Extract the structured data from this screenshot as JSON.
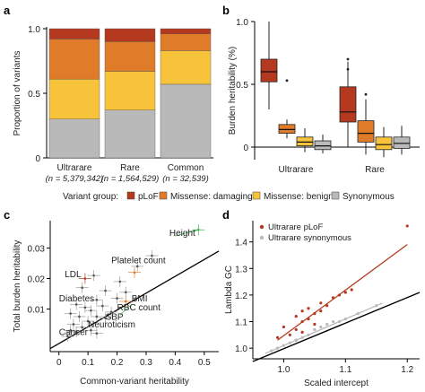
{
  "panel_labels": [
    "a",
    "b",
    "c",
    "d"
  ],
  "colors": {
    "plof": "#b5391f",
    "missense_damaging": "#e07b2a",
    "missense_benign": "#f6c33b",
    "synonymous": "#b9b9b9",
    "regression_line": "#000000",
    "d_plof_line": "#b5391f",
    "d_syn_line": "#b9b9b9",
    "green_line": "#3bb44a"
  },
  "legend": {
    "title": "Variant group:",
    "items": [
      {
        "key": "plof",
        "label": "pLoF"
      },
      {
        "key": "missense_damaging",
        "label": "Missense: damaging"
      },
      {
        "key": "missense_benign",
        "label": "Missense: benign"
      },
      {
        "key": "synonymous",
        "label": "Synonymous"
      }
    ]
  },
  "chart_data": [
    {
      "panel": "a",
      "type": "bar",
      "stacked": true,
      "ylabel": "Proportion of variants",
      "ylim": [
        0,
        1.0
      ],
      "yticks": [
        "0",
        "0.5",
        "1.0"
      ],
      "categories": [
        "Ultrarare",
        "Rare",
        "Common"
      ],
      "category_sublabels": [
        "(n = 5,379,342)",
        "(n = 1,564,529)",
        "(n = 32,539)"
      ],
      "series": [
        {
          "name": "Synonymous",
          "key": "synonymous",
          "values": [
            0.3,
            0.37,
            0.57
          ]
        },
        {
          "name": "Missense: benign",
          "key": "missense_benign",
          "values": [
            0.31,
            0.3,
            0.26
          ]
        },
        {
          "name": "Missense: damaging",
          "key": "missense_damaging",
          "values": [
            0.31,
            0.23,
            0.13
          ]
        },
        {
          "name": "pLoF",
          "key": "plof",
          "values": [
            0.08,
            0.1,
            0.04
          ]
        }
      ]
    },
    {
      "panel": "b",
      "type": "box",
      "ylabel": "Burden heritability (%)",
      "ylim": [
        -0.1,
        1.0
      ],
      "yticks": [
        "0",
        "0.5",
        "1.0"
      ],
      "categories": [
        "Ultrarare",
        "Rare"
      ],
      "boxes": [
        {
          "category": "Ultrarare",
          "key": "plof",
          "min": 0.3,
          "q1": 0.52,
          "median": 0.6,
          "q3": 0.7,
          "max": 1.0,
          "outliers": []
        },
        {
          "category": "Ultrarare",
          "key": "missense_damaging",
          "min": 0.07,
          "q1": 0.11,
          "median": 0.14,
          "q3": 0.18,
          "max": 0.22,
          "outliers": [
            0.53
          ]
        },
        {
          "category": "Ultrarare",
          "key": "missense_benign",
          "min": -0.04,
          "q1": 0.01,
          "median": 0.04,
          "q3": 0.08,
          "max": 0.15,
          "outliers": []
        },
        {
          "category": "Ultrarare",
          "key": "synonymous",
          "min": -0.05,
          "q1": -0.02,
          "median": 0.01,
          "q3": 0.05,
          "max": 0.1,
          "outliers": []
        },
        {
          "category": "Rare",
          "key": "plof",
          "min": 0.0,
          "q1": 0.2,
          "median": 0.28,
          "q3": 0.48,
          "max": 0.68,
          "outliers": [
            0.62,
            0.7
          ]
        },
        {
          "category": "Rare",
          "key": "missense_damaging",
          "min": -0.06,
          "q1": 0.04,
          "median": 0.11,
          "q3": 0.21,
          "max": 0.38,
          "outliers": [
            0.42
          ]
        },
        {
          "category": "Rare",
          "key": "missense_benign",
          "min": -0.08,
          "q1": -0.02,
          "median": 0.02,
          "q3": 0.08,
          "max": 0.16,
          "outliers": []
        },
        {
          "category": "Rare",
          "key": "synonymous",
          "min": -0.06,
          "q1": -0.01,
          "median": 0.03,
          "q3": 0.08,
          "max": 0.17,
          "outliers": []
        }
      ]
    },
    {
      "panel": "c",
      "type": "scatter",
      "xlabel": "Common-variant heritability",
      "ylabel": "Total burden heritability",
      "xlim": [
        -0.03,
        0.55
      ],
      "ylim": [
        -0.004,
        0.039
      ],
      "xticks": [
        "0",
        "0.1",
        "0.2",
        "0.3",
        "0.4",
        "0.5"
      ],
      "yticks": [
        "0.01",
        "0.02",
        "0.03"
      ],
      "regression": {
        "x0": -0.03,
        "y0": -0.003,
        "x1": 0.55,
        "y1": 0.029
      },
      "labels": [
        {
          "text": "Height",
          "x": 0.38,
          "y": 0.034
        },
        {
          "text": "Platelet count",
          "x": 0.18,
          "y": 0.025
        },
        {
          "text": "LDL",
          "x": 0.02,
          "y": 0.0205
        },
        {
          "text": "BMI",
          "x": 0.25,
          "y": 0.0125
        },
        {
          "text": "Diabetes",
          "x": 0.0,
          "y": 0.0125
        },
        {
          "text": "RBC count",
          "x": 0.2,
          "y": 0.0095
        },
        {
          "text": "SBP",
          "x": 0.16,
          "y": 0.0065
        },
        {
          "text": "Neuroticism",
          "x": 0.1,
          "y": 0.004
        },
        {
          "text": "Cancer",
          "x": 0.0,
          "y": 0.0015
        }
      ],
      "points": [
        {
          "x": 0.48,
          "y": 0.036,
          "color": "green_line"
        },
        {
          "x": 0.32,
          "y": 0.0275
        },
        {
          "x": 0.27,
          "y": 0.024
        },
        {
          "x": 0.26,
          "y": 0.022,
          "color": "missense_damaging"
        },
        {
          "x": 0.21,
          "y": 0.019
        },
        {
          "x": 0.09,
          "y": 0.02,
          "color": "plof"
        },
        {
          "x": 0.12,
          "y": 0.021
        },
        {
          "x": 0.08,
          "y": 0.017
        },
        {
          "x": 0.16,
          "y": 0.016
        },
        {
          "x": 0.23,
          "y": 0.0155
        },
        {
          "x": 0.2,
          "y": 0.0135
        },
        {
          "x": 0.23,
          "y": 0.0125,
          "color": "missense_damaging"
        },
        {
          "x": 0.13,
          "y": 0.013
        },
        {
          "x": 0.06,
          "y": 0.0115
        },
        {
          "x": 0.09,
          "y": 0.0105
        },
        {
          "x": 0.15,
          "y": 0.011
        },
        {
          "x": 0.18,
          "y": 0.009
        },
        {
          "x": 0.11,
          "y": 0.0095
        },
        {
          "x": 0.04,
          "y": 0.0085
        },
        {
          "x": 0.07,
          "y": 0.0075
        },
        {
          "x": 0.13,
          "y": 0.0075
        },
        {
          "x": 0.16,
          "y": 0.007
        },
        {
          "x": 0.1,
          "y": 0.006
        },
        {
          "x": 0.05,
          "y": 0.005
        },
        {
          "x": 0.08,
          "y": 0.004
        },
        {
          "x": 0.04,
          "y": 0.003
        },
        {
          "x": 0.06,
          "y": 0.0025
        },
        {
          "x": 0.11,
          "y": 0.003
        },
        {
          "x": 0.13,
          "y": 0.002
        },
        {
          "x": 0.03,
          "y": 0.001
        }
      ],
      "highlight_segments": [
        {
          "x0": 0.4,
          "y0": 0.034,
          "x1": 0.48,
          "y1": 0.036,
          "color": "green_line"
        },
        {
          "x0": 0.25,
          "y0": 0.0115,
          "x1": 0.21,
          "y1": 0.008,
          "color": "green_line"
        }
      ]
    },
    {
      "panel": "d",
      "type": "scatter",
      "xlabel": "Scaled intercept",
      "ylabel": "Lambda GC",
      "xlim": [
        0.95,
        1.22
      ],
      "ylim": [
        0.96,
        1.48
      ],
      "xticks": [
        "1.0",
        "1.1",
        "1.2"
      ],
      "yticks": [
        "1.0",
        "1.1",
        "1.2",
        "1.3",
        "1.4"
      ],
      "legend": [
        {
          "label": "Ultrarare pLoF",
          "key": "d_plof_line"
        },
        {
          "label": "Ultrarare synonymous",
          "key": "d_syn_line"
        }
      ],
      "diagonal": {
        "x0": 0.95,
        "y0": 0.95,
        "x1": 1.22,
        "y1": 1.21
      },
      "series": [
        {
          "name": "Ultrarare pLoF",
          "key": "d_plof_line",
          "fit": {
            "x0": 0.99,
            "y0": 1.03,
            "x1": 1.2,
            "y1": 1.39
          },
          "points": [
            {
              "x": 1.2,
              "y": 1.46
            },
            {
              "x": 1.1,
              "y": 1.21
            },
            {
              "x": 1.08,
              "y": 1.19
            },
            {
              "x": 1.06,
              "y": 1.17
            },
            {
              "x": 1.03,
              "y": 1.14
            },
            {
              "x": 1.04,
              "y": 1.15
            },
            {
              "x": 1.02,
              "y": 1.12
            },
            {
              "x": 1.03,
              "y": 1.1
            },
            {
              "x": 1.05,
              "y": 1.13
            },
            {
              "x": 1.07,
              "y": 1.16
            },
            {
              "x": 1.0,
              "y": 1.08
            },
            {
              "x": 1.02,
              "y": 1.07
            },
            {
              "x": 1.03,
              "y": 1.06
            },
            {
              "x": 1.01,
              "y": 1.05
            },
            {
              "x": 0.99,
              "y": 1.04
            },
            {
              "x": 1.09,
              "y": 1.2
            },
            {
              "x": 1.04,
              "y": 1.11
            },
            {
              "x": 1.06,
              "y": 1.14
            },
            {
              "x": 1.05,
              "y": 1.09
            },
            {
              "x": 1.02,
              "y": 1.03
            },
            {
              "x": 1.11,
              "y": 1.22
            }
          ]
        },
        {
          "name": "Ultrarare synonymous",
          "key": "d_syn_line",
          "fit": {
            "x0": 0.97,
            "y0": 0.98,
            "x1": 1.16,
            "y1": 1.17
          },
          "points": [
            {
              "x": 1.15,
              "y": 1.16
            },
            {
              "x": 1.1,
              "y": 1.11
            },
            {
              "x": 1.08,
              "y": 1.1
            },
            {
              "x": 1.06,
              "y": 1.08
            },
            {
              "x": 1.04,
              "y": 1.05
            },
            {
              "x": 1.02,
              "y": 1.03
            },
            {
              "x": 1.01,
              "y": 1.02
            },
            {
              "x": 0.99,
              "y": 1.0
            },
            {
              "x": 1.0,
              "y": 1.01
            },
            {
              "x": 1.03,
              "y": 1.04
            },
            {
              "x": 1.05,
              "y": 1.07
            },
            {
              "x": 1.07,
              "y": 1.09
            },
            {
              "x": 0.98,
              "y": 0.99
            },
            {
              "x": 1.09,
              "y": 1.1
            },
            {
              "x": 1.12,
              "y": 1.13
            }
          ]
        }
      ]
    }
  ]
}
